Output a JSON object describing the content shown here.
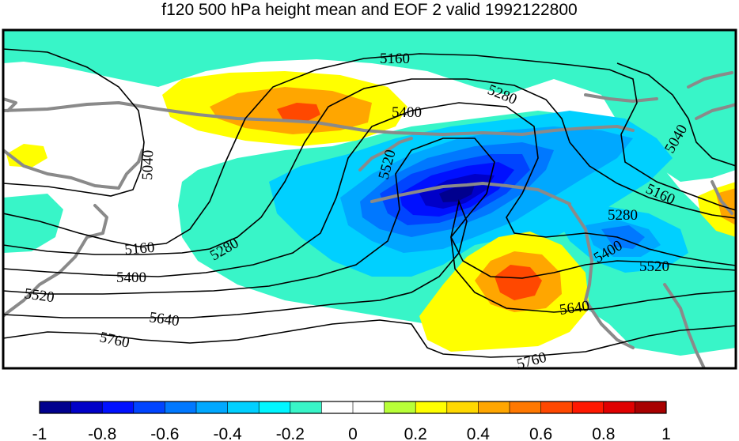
{
  "title": "f120 500 hPa height mean and EOF 2 valid 1992122800",
  "chart_data": {
    "type": "heatmap",
    "title": "f120 500 hPa height mean and EOF 2 valid 1992122800",
    "contour_levels": [
      5040,
      5160,
      5280,
      5400,
      5520,
      5640,
      5760
    ],
    "contour_labels": [
      "5160",
      "5280",
      "5400",
      "5520",
      "5040",
      "5040",
      "5160",
      "5280",
      "5400",
      "5520",
      "5640",
      "5760",
      "5160",
      "5280",
      "5400",
      "5520",
      "5640",
      "5760"
    ],
    "colorbar": {
      "ticks": [
        "-1",
        "-0.8",
        "-0.6",
        "-0.4",
        "-0.2",
        "0",
        "0.2",
        "0.4",
        "0.6",
        "0.8",
        "1"
      ],
      "range": [
        -1,
        1
      ],
      "step": 0.1,
      "colors": [
        "#00008e",
        "#0000c8",
        "#0010ff",
        "#0044ff",
        "#0078ff",
        "#00a8ff",
        "#00d0ff",
        "#00f6ff",
        "#38f5c8",
        "#ffffff",
        "#ffffff",
        "#b8ff38",
        "#ffff00",
        "#ffd800",
        "#ffa600",
        "#ff7800",
        "#ff4800",
        "#ff1800",
        "#e00000",
        "#a80000"
      ]
    },
    "anomalies": [
      {
        "sign": "positive",
        "peak": 0.6,
        "region": "north-central"
      },
      {
        "sign": "negative",
        "peak": -1.0,
        "region": "center"
      },
      {
        "sign": "positive",
        "peak": 0.6,
        "region": "south-central"
      },
      {
        "sign": "negative",
        "peak": -0.4,
        "region": "east"
      },
      {
        "sign": "negative",
        "peak": -0.4,
        "region": "north-east"
      },
      {
        "sign": "positive",
        "peak": 0.4,
        "region": "far-east"
      },
      {
        "sign": "positive",
        "peak": 0.2,
        "region": "west"
      }
    ]
  }
}
